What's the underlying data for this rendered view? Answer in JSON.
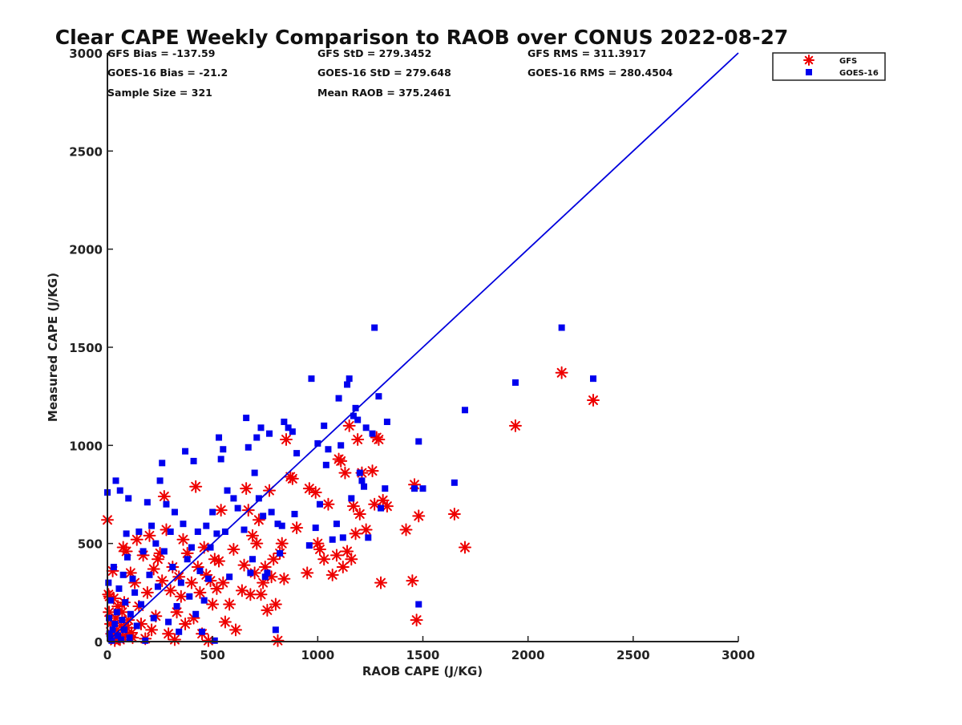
{
  "chart_data": {
    "type": "scatter",
    "title": "Clear CAPE Weekly Comparison to RAOB over CONUS 2022-08-27",
    "xlabel": "RAOB CAPE (J/KG)",
    "ylabel": "Measured CAPE (J/KG)",
    "xlim": [
      0,
      3000
    ],
    "ylim": [
      0,
      3000
    ],
    "xticks": [
      "0",
      "500",
      "1000",
      "1500",
      "2000",
      "2500",
      "3000"
    ],
    "yticks": [
      "0",
      "500",
      "1000",
      "1500",
      "2000",
      "2500",
      "3000"
    ],
    "grid": false,
    "legend_position": "top-right",
    "reference_line": {
      "type": "one-to-one",
      "from": [
        0,
        0
      ],
      "to": [
        3000,
        3000
      ],
      "color": "#0000dd"
    },
    "stats": {
      "gfs_bias": "GFS Bias = -137.59",
      "gfs_std": "GFS StD = 279.3452",
      "gfs_rms": "GFS RMS = 311.3917",
      "goes_bias": "GOES-16 Bias = -21.2",
      "goes_std": "GOES-16 StD = 279.648",
      "goes_rms": "GOES-16 RMS = 280.4504",
      "sample_size": "Sample Size = 321",
      "mean_raob": "Mean RAOB = 375.2461"
    },
    "series": [
      {
        "name": "GFS",
        "marker": "asterisk",
        "color": "#ee0000",
        "points": [
          [
            0,
            620
          ],
          [
            5,
            240
          ],
          [
            8,
            150
          ],
          [
            10,
            230
          ],
          [
            15,
            90
          ],
          [
            20,
            40
          ],
          [
            25,
            360
          ],
          [
            30,
            220
          ],
          [
            35,
            5
          ],
          [
            40,
            120
          ],
          [
            45,
            60
          ],
          [
            50,
            180
          ],
          [
            55,
            20
          ],
          [
            60,
            10
          ],
          [
            65,
            80
          ],
          [
            70,
            150
          ],
          [
            75,
            480
          ],
          [
            80,
            200
          ],
          [
            85,
            30
          ],
          [
            90,
            460
          ],
          [
            95,
            70
          ],
          [
            100,
            110
          ],
          [
            110,
            350
          ],
          [
            115,
            45
          ],
          [
            120,
            20
          ],
          [
            130,
            300
          ],
          [
            140,
            520
          ],
          [
            150,
            180
          ],
          [
            160,
            90
          ],
          [
            170,
            440
          ],
          [
            180,
            15
          ],
          [
            190,
            250
          ],
          [
            200,
            540
          ],
          [
            210,
            60
          ],
          [
            220,
            370
          ],
          [
            230,
            130
          ],
          [
            240,
            420
          ],
          [
            250,
            450
          ],
          [
            260,
            310
          ],
          [
            270,
            740
          ],
          [
            280,
            570
          ],
          [
            290,
            40
          ],
          [
            300,
            260
          ],
          [
            310,
            380
          ],
          [
            320,
            10
          ],
          [
            330,
            150
          ],
          [
            340,
            330
          ],
          [
            350,
            230
          ],
          [
            360,
            520
          ],
          [
            370,
            90
          ],
          [
            380,
            450
          ],
          [
            400,
            300
          ],
          [
            410,
            120
          ],
          [
            420,
            790
          ],
          [
            430,
            380
          ],
          [
            440,
            250
          ],
          [
            450,
            40
          ],
          [
            460,
            480
          ],
          [
            470,
            340
          ],
          [
            480,
            5
          ],
          [
            490,
            310
          ],
          [
            500,
            190
          ],
          [
            510,
            420
          ],
          [
            520,
            270
          ],
          [
            530,
            410
          ],
          [
            540,
            670
          ],
          [
            550,
            300
          ],
          [
            560,
            100
          ],
          [
            580,
            190
          ],
          [
            600,
            470
          ],
          [
            610,
            60
          ],
          [
            640,
            260
          ],
          [
            650,
            390
          ],
          [
            660,
            780
          ],
          [
            670,
            670
          ],
          [
            680,
            240
          ],
          [
            690,
            540
          ],
          [
            700,
            350
          ],
          [
            710,
            500
          ],
          [
            720,
            620
          ],
          [
            730,
            240
          ],
          [
            740,
            300
          ],
          [
            750,
            380
          ],
          [
            760,
            160
          ],
          [
            770,
            770
          ],
          [
            780,
            330
          ],
          [
            790,
            420
          ],
          [
            800,
            190
          ],
          [
            810,
            5
          ],
          [
            820,
            450
          ],
          [
            830,
            500
          ],
          [
            840,
            320
          ],
          [
            850,
            1030
          ],
          [
            870,
            840
          ],
          [
            880,
            830
          ],
          [
            900,
            580
          ],
          [
            950,
            350
          ],
          [
            960,
            780
          ],
          [
            990,
            760
          ],
          [
            1000,
            500
          ],
          [
            1010,
            470
          ],
          [
            1030,
            420
          ],
          [
            1050,
            700
          ],
          [
            1070,
            340
          ],
          [
            1090,
            440
          ],
          [
            1100,
            930
          ],
          [
            1110,
            920
          ],
          [
            1120,
            380
          ],
          [
            1130,
            860
          ],
          [
            1140,
            460
          ],
          [
            1150,
            1100
          ],
          [
            1160,
            420
          ],
          [
            1170,
            690
          ],
          [
            1180,
            550
          ],
          [
            1190,
            1030
          ],
          [
            1200,
            650
          ],
          [
            1210,
            860
          ],
          [
            1230,
            570
          ],
          [
            1260,
            870
          ],
          [
            1270,
            700
          ],
          [
            1280,
            1040
          ],
          [
            1290,
            1030
          ],
          [
            1300,
            300
          ],
          [
            1310,
            720
          ],
          [
            1330,
            690
          ],
          [
            1420,
            570
          ],
          [
            1450,
            310
          ],
          [
            1470,
            110
          ],
          [
            1480,
            640
          ],
          [
            1460,
            800
          ],
          [
            1650,
            650
          ],
          [
            1700,
            480
          ],
          [
            1940,
            1100
          ],
          [
            2160,
            1370
          ],
          [
            2310,
            1230
          ]
        ]
      },
      {
        "name": "GOES-16",
        "marker": "square",
        "color": "#0000ee",
        "points": [
          [
            0,
            760
          ],
          [
            5,
            300
          ],
          [
            8,
            120
          ],
          [
            10,
            40
          ],
          [
            12,
            20
          ],
          [
            15,
            210
          ],
          [
            20,
            5
          ],
          [
            25,
            60
          ],
          [
            30,
            380
          ],
          [
            35,
            90
          ],
          [
            40,
            820
          ],
          [
            45,
            150
          ],
          [
            50,
            30
          ],
          [
            55,
            270
          ],
          [
            60,
            770
          ],
          [
            65,
            10
          ],
          [
            70,
            110
          ],
          [
            75,
            340
          ],
          [
            80,
            60
          ],
          [
            85,
            200
          ],
          [
            90,
            550
          ],
          [
            95,
            430
          ],
          [
            100,
            730
          ],
          [
            105,
            20
          ],
          [
            110,
            140
          ],
          [
            120,
            320
          ],
          [
            130,
            250
          ],
          [
            140,
            80
          ],
          [
            150,
            560
          ],
          [
            160,
            190
          ],
          [
            170,
            460
          ],
          [
            180,
            5
          ],
          [
            190,
            710
          ],
          [
            200,
            340
          ],
          [
            210,
            590
          ],
          [
            220,
            120
          ],
          [
            230,
            500
          ],
          [
            240,
            280
          ],
          [
            250,
            820
          ],
          [
            260,
            910
          ],
          [
            270,
            460
          ],
          [
            280,
            700
          ],
          [
            290,
            100
          ],
          [
            300,
            560
          ],
          [
            310,
            380
          ],
          [
            320,
            660
          ],
          [
            330,
            180
          ],
          [
            340,
            50
          ],
          [
            350,
            300
          ],
          [
            360,
            600
          ],
          [
            370,
            970
          ],
          [
            380,
            420
          ],
          [
            390,
            230
          ],
          [
            400,
            480
          ],
          [
            410,
            920
          ],
          [
            420,
            140
          ],
          [
            430,
            560
          ],
          [
            440,
            360
          ],
          [
            450,
            50
          ],
          [
            460,
            210
          ],
          [
            470,
            590
          ],
          [
            480,
            320
          ],
          [
            490,
            480
          ],
          [
            500,
            660
          ],
          [
            510,
            5
          ],
          [
            520,
            550
          ],
          [
            530,
            1040
          ],
          [
            540,
            930
          ],
          [
            550,
            980
          ],
          [
            560,
            560
          ],
          [
            570,
            770
          ],
          [
            580,
            330
          ],
          [
            600,
            730
          ],
          [
            620,
            680
          ],
          [
            650,
            570
          ],
          [
            660,
            1140
          ],
          [
            670,
            990
          ],
          [
            680,
            350
          ],
          [
            690,
            420
          ],
          [
            700,
            860
          ],
          [
            710,
            1040
          ],
          [
            720,
            730
          ],
          [
            730,
            1090
          ],
          [
            740,
            640
          ],
          [
            750,
            330
          ],
          [
            760,
            350
          ],
          [
            770,
            1060
          ],
          [
            780,
            660
          ],
          [
            800,
            60
          ],
          [
            810,
            600
          ],
          [
            820,
            450
          ],
          [
            830,
            590
          ],
          [
            840,
            1120
          ],
          [
            860,
            1090
          ],
          [
            880,
            1070
          ],
          [
            890,
            650
          ],
          [
            900,
            960
          ],
          [
            960,
            490
          ],
          [
            970,
            1340
          ],
          [
            990,
            580
          ],
          [
            1000,
            1010
          ],
          [
            1010,
            700
          ],
          [
            1030,
            1100
          ],
          [
            1040,
            900
          ],
          [
            1050,
            980
          ],
          [
            1070,
            520
          ],
          [
            1090,
            600
          ],
          [
            1100,
            1240
          ],
          [
            1110,
            1000
          ],
          [
            1120,
            530
          ],
          [
            1140,
            1310
          ],
          [
            1150,
            1340
          ],
          [
            1160,
            730
          ],
          [
            1170,
            1150
          ],
          [
            1180,
            1190
          ],
          [
            1190,
            1130
          ],
          [
            1200,
            860
          ],
          [
            1210,
            820
          ],
          [
            1220,
            790
          ],
          [
            1230,
            1090
          ],
          [
            1240,
            530
          ],
          [
            1260,
            1060
          ],
          [
            1270,
            1600
          ],
          [
            1290,
            1250
          ],
          [
            1300,
            680
          ],
          [
            1320,
            780
          ],
          [
            1330,
            1120
          ],
          [
            1460,
            780
          ],
          [
            1480,
            190
          ],
          [
            1480,
            1020
          ],
          [
            1500,
            780
          ],
          [
            1650,
            810
          ],
          [
            1700,
            1180
          ],
          [
            1940,
            1320
          ],
          [
            2160,
            1600
          ],
          [
            2310,
            1340
          ]
        ]
      }
    ]
  }
}
